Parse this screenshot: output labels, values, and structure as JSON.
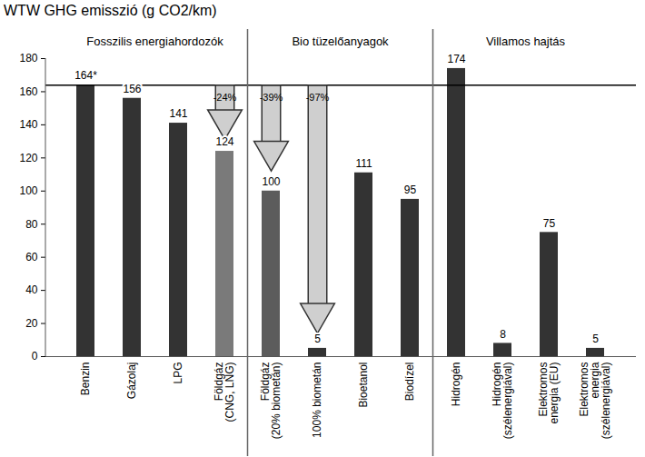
{
  "chart_data": {
    "type": "bar",
    "title": "WTW GHG emisszió (g CO2/km)",
    "categories": [
      "Benzin",
      "Gázolaj",
      "LPG",
      "Földgáz\n(CNG, LNG)",
      "Földgáz\n(20% biometán)",
      "100% biometán",
      "Bioetanol",
      "Biodízel",
      "Hidrogén",
      "Hidrogén\n(szélenergiával)",
      "Elektromos\nenergia (EU)",
      "Elektromos\nenergia\n(szélenergiával)"
    ],
    "values": [
      164,
      156,
      141,
      124,
      100,
      5,
      111,
      95,
      174,
      8,
      75,
      5
    ],
    "value_labels": [
      "164*",
      "156",
      "141",
      "124",
      "100",
      "5",
      "111",
      "95",
      "174",
      "8",
      "75",
      "5"
    ],
    "data_labels": true,
    "colors": [
      "#333333",
      "#333333",
      "#333333",
      "#7a7a7a",
      "#5c5c5c",
      "#333333",
      "#333333",
      "#333333",
      "#333333",
      "#333333",
      "#333333",
      "#333333"
    ],
    "ylim": [
      0,
      180
    ],
    "yticks": [
      0,
      20,
      40,
      60,
      80,
      100,
      120,
      140,
      160,
      180
    ],
    "grid": false,
    "reference_y": 164,
    "groups": [
      {
        "label": "Fosszilis energiahordozók",
        "categories": [
          "Benzin",
          "Gázolaj",
          "LPG",
          "Földgáz\n(CNG, LNG)"
        ]
      },
      {
        "label": "Bio tüzelőanyagok",
        "categories": [
          "Földgáz\n(20% biometán)",
          "100% biometán",
          "Bioetanol",
          "Biodízel"
        ]
      },
      {
        "label": "Villamos hajtás",
        "categories": [
          "Hidrogén",
          "Hidrogén\n(szélenergiával)",
          "Elektromos\nenergia (EU)",
          "Elektromos\nenergia\n(szélenergiával)"
        ]
      }
    ],
    "annotations": [
      {
        "text": "-24%",
        "category": "Földgáz\n(CNG, LNG)",
        "from": 164,
        "to": 131
      },
      {
        "text": "-39%",
        "category": "Földgáz\n(20% biometán)",
        "from": 164,
        "to": 112
      },
      {
        "text": "-97%",
        "category": "100% biometán",
        "from": 164,
        "to": 14
      }
    ]
  }
}
